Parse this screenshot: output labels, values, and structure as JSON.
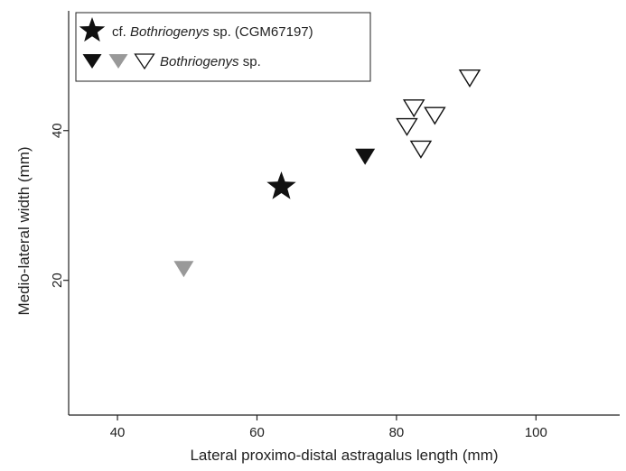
{
  "chart_data": {
    "type": "scatter",
    "title": "",
    "xlabel": "Lateral proximo-distal astragalus length (mm)",
    "ylabel": "Medio-lateral width (mm)",
    "xlim": [
      33,
      112
    ],
    "ylim": [
      2,
      56
    ],
    "xticks": [
      "40",
      "60",
      "80",
      "100"
    ],
    "xtick_values": [
      40,
      60,
      80,
      100
    ],
    "yticks": [
      "20",
      "40"
    ],
    "ytick_values": [
      20,
      40
    ],
    "grid": false,
    "legend_position": "top-left",
    "legend": [
      {
        "prefix": "cf. ",
        "italic": "Bothriogenys",
        "suffix": " sp. (CGM67197)",
        "marker": "star"
      },
      {
        "prefix": "",
        "italic": "Bothriogenys",
        "suffix": " sp.",
        "marker": "triangle-down-set"
      }
    ],
    "series": [
      {
        "marker": "star",
        "color": "#111111",
        "points": [
          [
            63.5,
            32.5
          ]
        ]
      },
      {
        "marker": "triangle-down",
        "color": "#111111",
        "points": [
          [
            75.5,
            36.5
          ]
        ]
      },
      {
        "marker": "triangle-down",
        "color": "#999999",
        "points": [
          [
            49.5,
            21.5
          ]
        ]
      },
      {
        "marker": "triangle-down-open",
        "color": "#111111",
        "points": [
          [
            90.5,
            47
          ],
          [
            82.5,
            43
          ],
          [
            85.5,
            42
          ],
          [
            81.5,
            40.5
          ],
          [
            83.5,
            37.5
          ]
        ]
      }
    ],
    "colors": {
      "black": "#111111",
      "gray": "#999999",
      "open": "#ffffff"
    }
  }
}
